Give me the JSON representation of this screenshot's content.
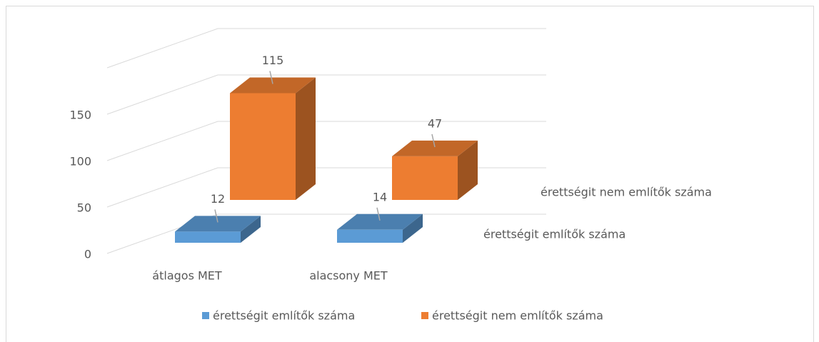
{
  "chart_data": {
    "type": "bar3d",
    "categories": [
      "átlagos MET",
      "alacsony MET"
    ],
    "series": [
      {
        "name": "érettségit említők száma",
        "color": "#5b9bd5",
        "values": [
          12,
          14
        ]
      },
      {
        "name": "érettségit nem említők száma",
        "color": "#ed7d31",
        "values": [
          115,
          47
        ]
      }
    ],
    "ylim": [
      0,
      200
    ],
    "yticks": [
      0,
      50,
      100,
      150
    ],
    "grid": true,
    "legend": "bottom"
  }
}
